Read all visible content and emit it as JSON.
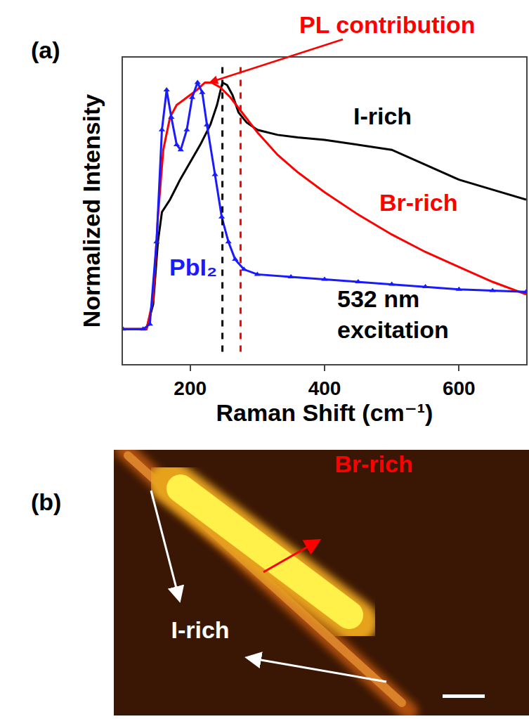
{
  "chart_data": {
    "type": "line",
    "panel": "(a)",
    "x_label": "Raman Shift (cm⁻¹)",
    "y_label": "Normalized Intensity",
    "xlim": [
      100,
      700
    ],
    "xticks": [
      200,
      400,
      600
    ],
    "ylim": [
      -0.14,
      1.09
    ],
    "tick_labels": "x",
    "grid": false,
    "series": [
      {
        "name": "I-rich",
        "color": "#000000",
        "line_style": "solid",
        "x": [
          100,
          135,
          145,
          152,
          158,
          170,
          185,
          200,
          215,
          230,
          240,
          248,
          255,
          263,
          272,
          284,
          300,
          330,
          360,
          400,
          450,
          500,
          550,
          600,
          650,
          700
        ],
        "values": [
          0,
          0,
          0.1,
          0.35,
          0.47,
          0.52,
          0.6,
          0.67,
          0.74,
          0.82,
          0.9,
          0.99,
          0.98,
          0.94,
          0.87,
          0.83,
          0.8,
          0.78,
          0.77,
          0.76,
          0.74,
          0.72,
          0.66,
          0.6,
          0.56,
          0.52
        ]
      },
      {
        "name": "Br-rich",
        "color": "#ff0000",
        "line_style": "solid",
        "x": [
          100,
          135,
          145,
          152,
          160,
          170,
          180,
          195,
          210,
          222,
          232,
          245,
          260,
          280,
          300,
          330,
          360,
          400,
          450,
          500,
          550,
          600,
          650,
          700
        ],
        "values": [
          0,
          0,
          0.12,
          0.45,
          0.72,
          0.85,
          0.9,
          0.93,
          0.96,
          0.99,
          0.99,
          0.97,
          0.93,
          0.86,
          0.79,
          0.7,
          0.63,
          0.55,
          0.46,
          0.38,
          0.31,
          0.25,
          0.19,
          0.14
        ]
      },
      {
        "name": "PbI₂",
        "color": "#1a1aff",
        "line_style": "solid",
        "marker": "triangle-up",
        "x": [
          100,
          130,
          140,
          150,
          158,
          165,
          172,
          180,
          186,
          195,
          203,
          211,
          218,
          225,
          237,
          247,
          257,
          267,
          280,
          300,
          350,
          400,
          450,
          500,
          550,
          600,
          650,
          700
        ],
        "values": [
          0,
          0,
          0.02,
          0.35,
          0.8,
          0.96,
          0.85,
          0.74,
          0.72,
          0.8,
          0.93,
          0.99,
          0.95,
          0.82,
          0.62,
          0.45,
          0.35,
          0.28,
          0.24,
          0.22,
          0.21,
          0.2,
          0.19,
          0.18,
          0.17,
          0.16,
          0.155,
          0.15
        ]
      }
    ],
    "vlines": [
      {
        "x": 248,
        "color": "#000000",
        "line_style": "dashed"
      },
      {
        "x": 275,
        "color": "#ff0000",
        "line_style": "dashed"
      }
    ],
    "annotations": [
      {
        "text": "PL contribution",
        "color": "#ff0000"
      },
      {
        "text": "532 nm excitation",
        "color": "#000000"
      }
    ]
  },
  "image": {
    "panel": "(b)",
    "labels": [
      {
        "text": "Br-rich",
        "color": "#ff0000"
      },
      {
        "text": "I-rich",
        "color": "#ffffff"
      }
    ]
  }
}
